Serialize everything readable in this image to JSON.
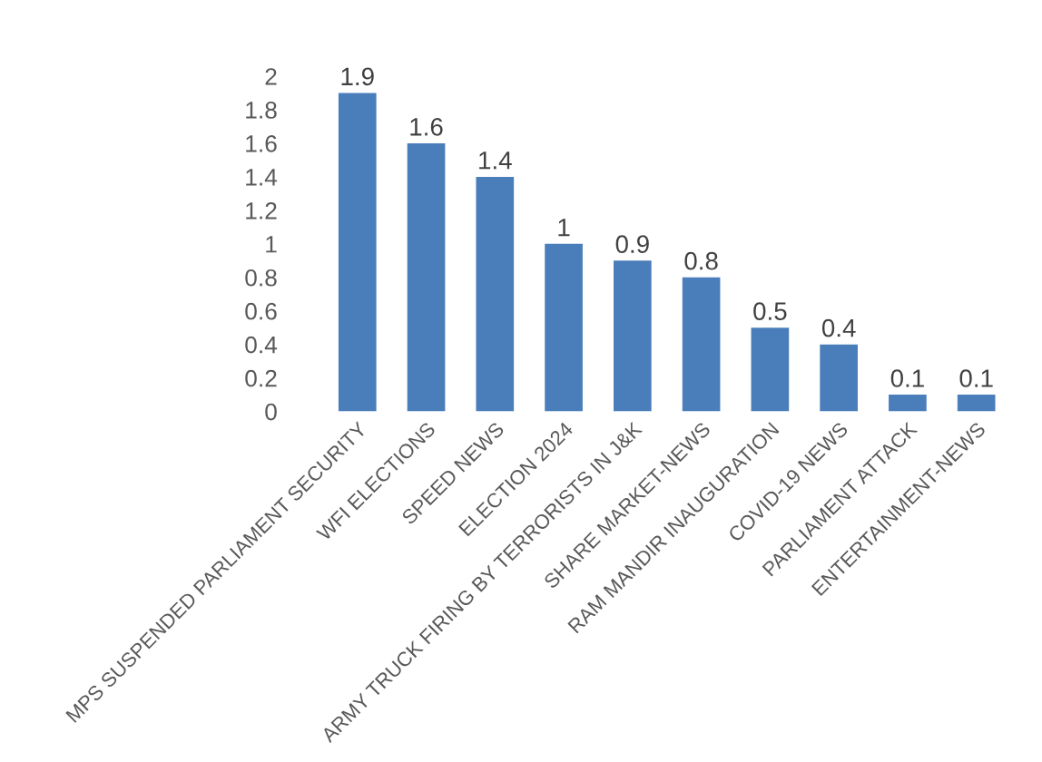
{
  "chart_data": {
    "type": "bar",
    "categories": [
      "MPS SUSPENDED PARLIAMENT SECURITY",
      "WFI ELECTIONS",
      "SPEED NEWS",
      "ELECTION 2024",
      "ARMY TRUCK FIRING BY TERRORISTS IN J&K",
      "SHARE MARKET-NEWS",
      "RAM MANDIR INAUGURATION",
      "COVID-19 NEWS",
      "PARLIAMENT ATTACK",
      "ENTERTAINMENT-NEWS"
    ],
    "values": [
      1.9,
      1.6,
      1.4,
      1,
      0.9,
      0.8,
      0.5,
      0.4,
      0.1,
      0.1
    ],
    "color": "#4a7ebb",
    "ylim": [
      0,
      2
    ],
    "yticks": [
      0,
      0.2,
      0.4,
      0.6,
      0.8,
      1,
      1.2,
      1.4,
      1.6,
      1.8,
      2
    ],
    "data_labels": true,
    "grid": false,
    "legend": false
  }
}
